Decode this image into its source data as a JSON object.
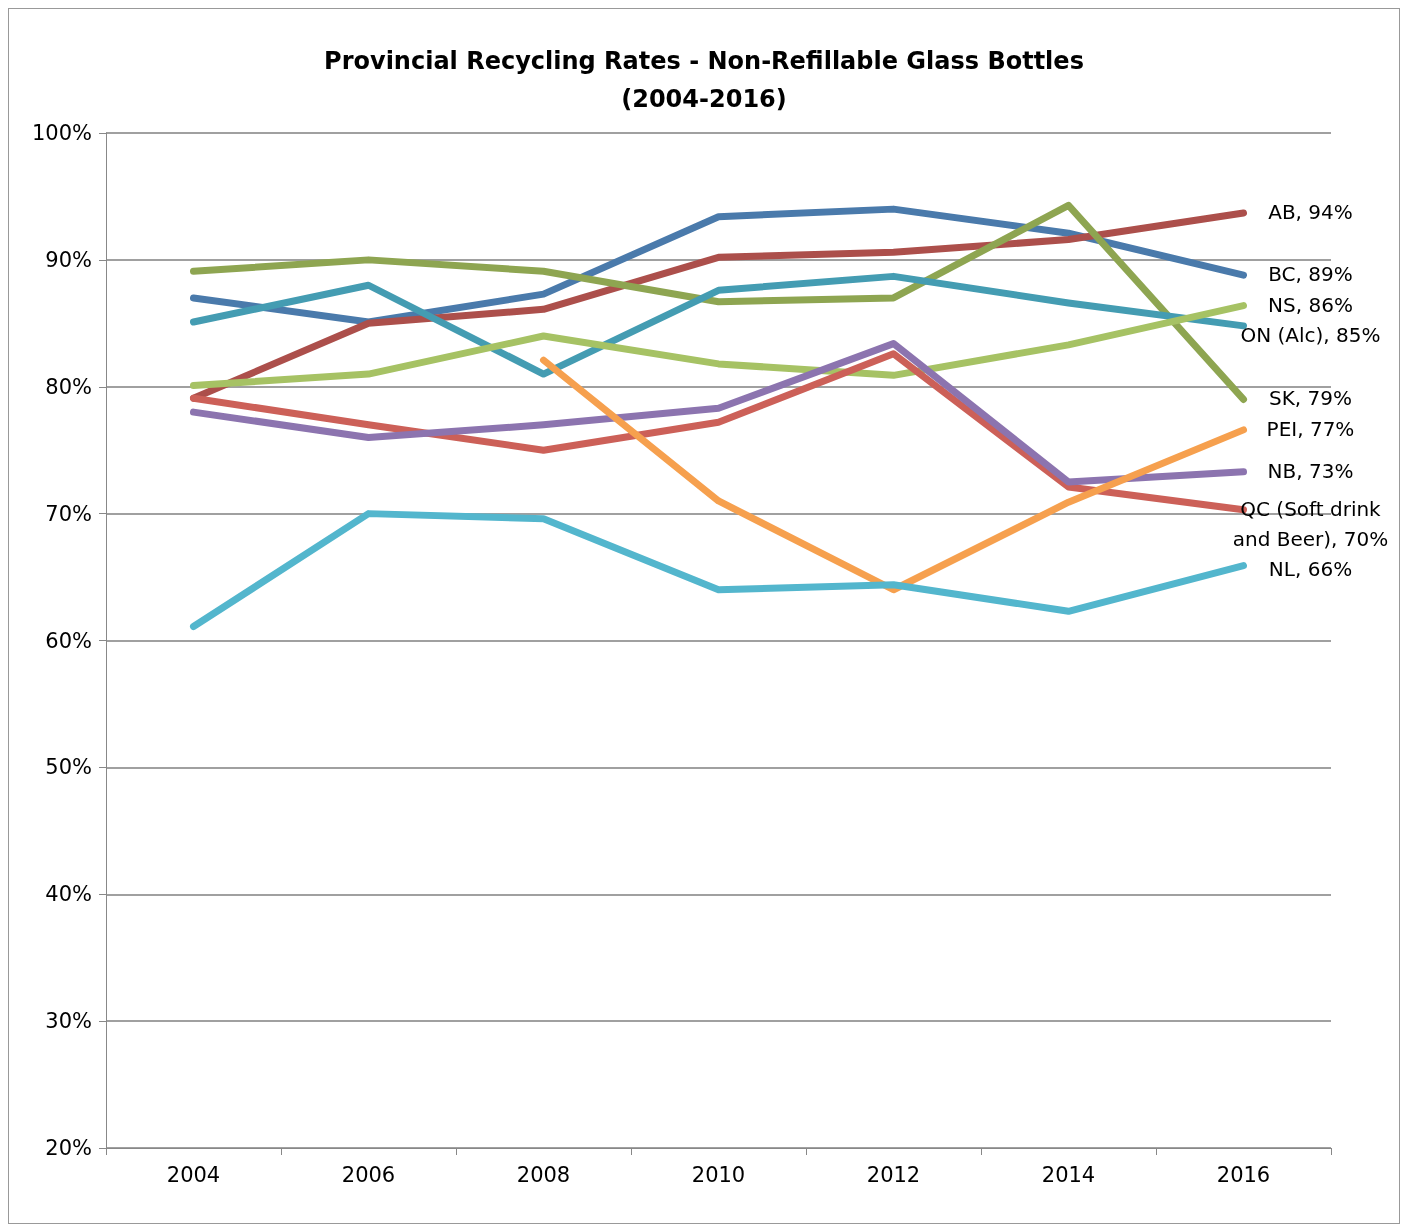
{
  "chart_data": {
    "type": "line",
    "title": "Provincial Recycling Rates - Non-Refillable Glass Bottles\n(2004-2016)",
    "categories": [
      "2004",
      "2006",
      "2008",
      "2010",
      "2012",
      "2014",
      "2016"
    ],
    "series": [
      {
        "color": "#4a7aab",
        "values": [
          87.0,
          85.1,
          87.3,
          93.4,
          94.0,
          92.1,
          88.8
        ]
      },
      {
        "color": "#ac4f4b",
        "values": [
          79.1,
          85.0,
          86.1,
          90.2,
          90.6,
          91.6,
          93.7
        ]
      },
      {
        "color": "#8ea551",
        "values": [
          89.1,
          90.0,
          89.1,
          86.7,
          87.0,
          94.3,
          79.0
        ]
      },
      {
        "color": "#449cb2",
        "values": [
          85.1,
          88.0,
          81.0,
          87.6,
          88.7,
          86.6,
          84.8
        ]
      },
      {
        "color": "#a6c264",
        "values": [
          80.1,
          81.0,
          84.0,
          81.8,
          80.9,
          83.3,
          86.4
        ]
      },
      {
        "color": "#cc6058",
        "values": [
          79.1,
          77.0,
          75.0,
          77.2,
          82.6,
          72.1,
          70.3
        ]
      },
      {
        "color": "#8c74af",
        "values": [
          78.0,
          76.0,
          77.0,
          78.3,
          83.4,
          72.5,
          73.3
        ]
      },
      {
        "color": "#f6a04e",
        "values": [
          null,
          null,
          82.1,
          71.0,
          64.0,
          70.9,
          76.6
        ]
      },
      {
        "color": "#53b6cd",
        "values": [
          61.1,
          70.0,
          69.6,
          64.0,
          64.4,
          62.3,
          65.9
        ]
      }
    ],
    "ylim": [
      20,
      100
    ],
    "yticks": [
      {
        "value": 20,
        "label": "20%"
      },
      {
        "value": 30,
        "label": "30%"
      },
      {
        "value": 40,
        "label": "40%"
      },
      {
        "value": 50,
        "label": "50%"
      },
      {
        "value": 60,
        "label": "60%"
      },
      {
        "value": 70,
        "label": "70%"
      },
      {
        "value": 80,
        "label": "80%"
      },
      {
        "value": 90,
        "label": "90%"
      },
      {
        "value": 100,
        "label": "100%"
      }
    ],
    "grid": "y",
    "marker": "none",
    "line_style": "solid",
    "annotations": [
      {
        "text": "AB, 94%",
        "x": "2016",
        "y": 93.7
      },
      {
        "text": "BC, 89%",
        "x": "2016",
        "y": 88.8
      },
      {
        "text": "NS, 86%",
        "x": "2016",
        "y": 86.4
      },
      {
        "text": "ON (Alc), 85%",
        "x": "2016",
        "y": 84.8
      },
      {
        "text": "SK, 79%",
        "x": "2016",
        "y": 79.0
      },
      {
        "text": "PEI, 77%",
        "x": "2016",
        "y": 76.6
      },
      {
        "text": "NB, 73%",
        "x": "2016",
        "y": 73.3
      },
      {
        "text": "QC (Soft drink and Beer), 70%",
        "x": "2016",
        "y": 70.3
      },
      {
        "text": "NL, 66%",
        "x": "2016",
        "y": 65.9
      }
    ]
  }
}
